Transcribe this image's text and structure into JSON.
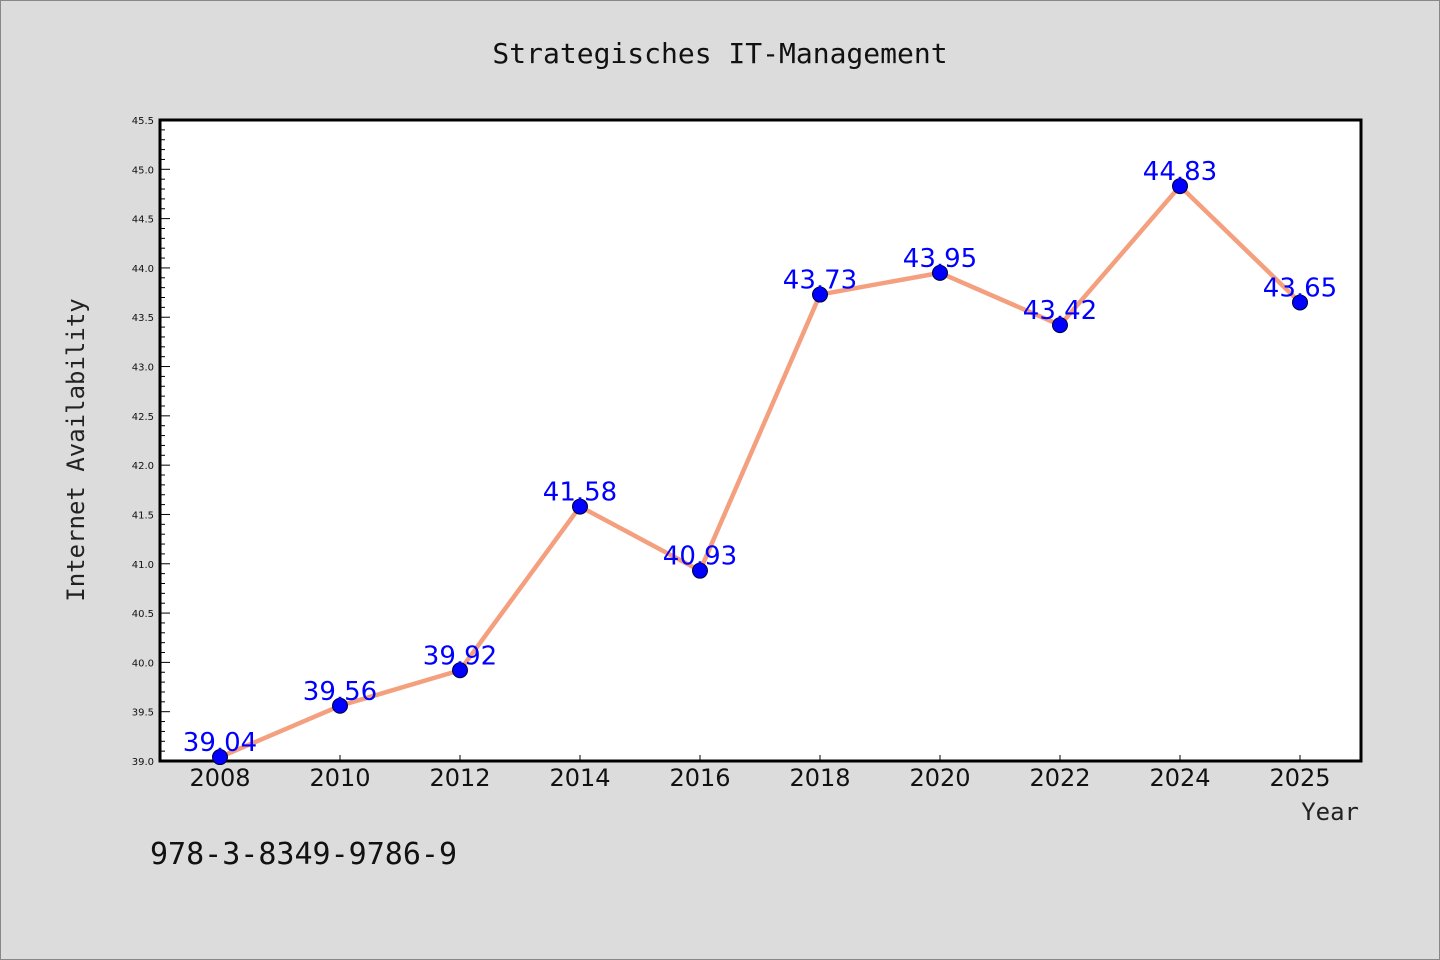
{
  "chart_data": {
    "type": "line",
    "title": "Strategisches IT-Management",
    "xlabel": "Year",
    "ylabel": "Internet Availability",
    "categories": [
      "2008",
      "2010",
      "2012",
      "2014",
      "2016",
      "2018",
      "2020",
      "2022",
      "2024",
      "2025"
    ],
    "series": [
      {
        "values": [
          39.04,
          39.56,
          39.92,
          41.58,
          40.93,
          43.73,
          43.95,
          43.42,
          44.83,
          43.65
        ],
        "line_color": "#f4a07e",
        "marker_color": "#0000ff",
        "label_color": "#0000ff"
      }
    ],
    "data_labels": [
      "39.04",
      "39.56",
      "39.92",
      "41.58",
      "40.93",
      "43.73",
      "43.95",
      "43.42",
      "44.83",
      "43.65"
    ],
    "ylim": [
      39.0,
      45.5
    ],
    "yticks": [
      "39.0",
      "39.5",
      "40.0",
      "40.5",
      "41.0",
      "41.5",
      "42.0",
      "42.5",
      "43.0",
      "43.5",
      "44.0",
      "44.5",
      "45.0",
      "45.5"
    ],
    "grid": false,
    "legend": "none"
  },
  "footer": {
    "isbn": "978-3-8349-9786-9"
  }
}
